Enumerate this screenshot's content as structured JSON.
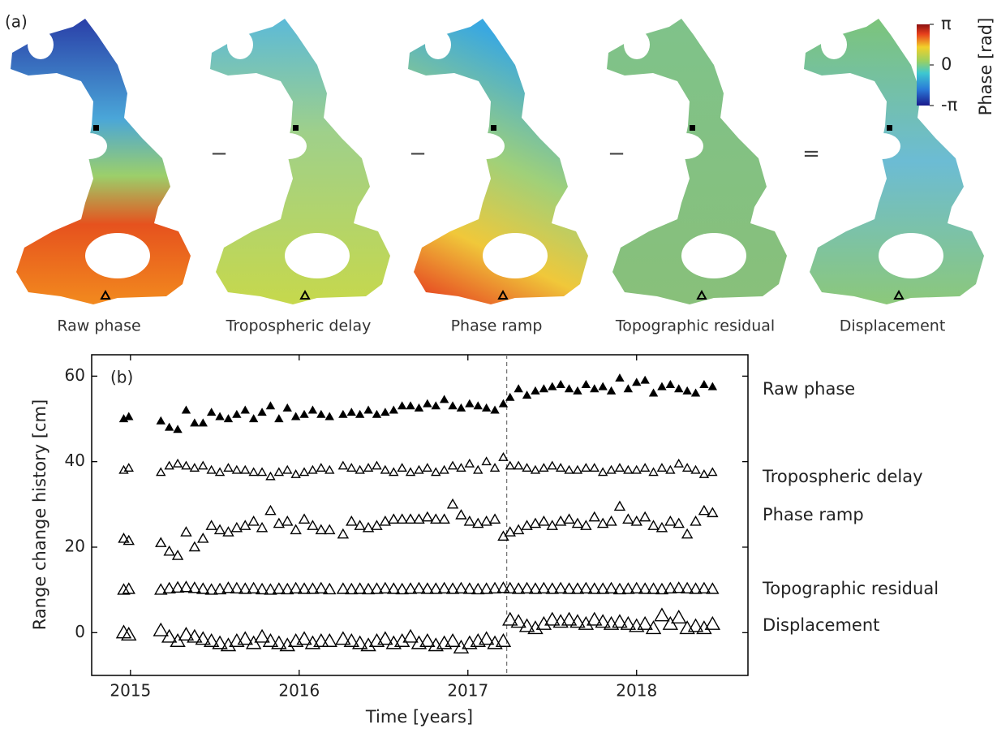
{
  "figure_a": {
    "panel_label": "(a)",
    "maps": [
      {
        "label": "Raw phase"
      },
      {
        "label": "Tropospheric delay"
      },
      {
        "label": "Phase ramp"
      },
      {
        "label": "Topographic residual"
      },
      {
        "label": "Displacement"
      }
    ],
    "operators": [
      "−",
      "−",
      "−",
      "="
    ],
    "colorbar": {
      "label": "Phase [rad]",
      "lim": [
        -3.14159,
        3.14159
      ],
      "ticks": [
        {
          "value": 3.14159,
          "label": "π"
        },
        0,
        {
          "value": -3.14159,
          "label": "-π"
        }
      ]
    }
  },
  "chart_data": {
    "type": "scatter",
    "panel_label": "(b)",
    "xlabel": "Time [years]",
    "ylabel": "Range change history [cm]",
    "xlim": [
      2014.77,
      2018.66
    ],
    "xticks": [
      2015,
      2016,
      2017,
      2018
    ],
    "ylim": [
      -10,
      65
    ],
    "yticks": [
      0,
      20,
      40,
      60
    ],
    "vline": 2017.23,
    "x": [
      2014.96,
      2014.99,
      2015.18,
      2015.23,
      2015.28,
      2015.33,
      2015.38,
      2015.43,
      2015.48,
      2015.53,
      2015.58,
      2015.63,
      2015.68,
      2015.73,
      2015.78,
      2015.83,
      2015.88,
      2015.93,
      2015.98,
      2016.03,
      2016.08,
      2016.13,
      2016.18,
      2016.26,
      2016.31,
      2016.36,
      2016.41,
      2016.46,
      2016.51,
      2016.56,
      2016.61,
      2016.66,
      2016.71,
      2016.76,
      2016.81,
      2016.86,
      2016.91,
      2016.96,
      2017.01,
      2017.06,
      2017.11,
      2017.16,
      2017.21,
      2017.25,
      2017.3,
      2017.35,
      2017.4,
      2017.45,
      2017.5,
      2017.55,
      2017.6,
      2017.65,
      2017.7,
      2017.75,
      2017.8,
      2017.85,
      2017.9,
      2017.95,
      2018.0,
      2018.05,
      2018.1,
      2018.15,
      2018.2,
      2018.25,
      2018.3,
      2018.35,
      2018.4,
      2018.45
    ],
    "series": [
      {
        "name": "Raw phase",
        "color": "#000000",
        "marker": "filled",
        "values": [
          50,
          50.5,
          49.5,
          48,
          47.5,
          52,
          49,
          49,
          51.5,
          50.5,
          50,
          51,
          52,
          50,
          51.5,
          53,
          50,
          52.5,
          50.5,
          51,
          52,
          51,
          50.5,
          51,
          51.5,
          51,
          52,
          51,
          51.5,
          52,
          53,
          53,
          52.5,
          53.5,
          53,
          54.5,
          53,
          52.5,
          53.5,
          53,
          52.5,
          52,
          53.5,
          55,
          57,
          55.5,
          56.5,
          57,
          57.5,
          58,
          57,
          56.5,
          58,
          57,
          57.5,
          56.5,
          59.5,
          57,
          58.5,
          59,
          56,
          57.5,
          58,
          57,
          56.5,
          56,
          58,
          57.5
        ]
      },
      {
        "name": "Tropospheric delay",
        "color": "#000000",
        "marker": "open",
        "values": [
          38,
          38.5,
          37.5,
          39,
          39.5,
          39,
          38.5,
          39,
          38,
          37.5,
          38.5,
          38,
          38,
          37.5,
          37.5,
          36.5,
          37.5,
          38,
          37,
          37.5,
          38,
          38.5,
          38,
          39,
          38.5,
          38,
          38.5,
          39,
          38,
          37.5,
          38.5,
          37.5,
          38,
          38.5,
          37.5,
          38,
          39,
          38.5,
          39.5,
          38,
          40,
          38.5,
          41,
          39,
          39,
          38.5,
          38,
          38.5,
          39,
          38.5,
          38,
          38,
          38.5,
          38.5,
          37.5,
          38,
          38.5,
          38,
          38,
          38.5,
          37.5,
          38.5,
          38,
          39.5,
          38.5,
          38,
          37,
          37.5
        ]
      },
      {
        "name": "Phase ramp",
        "color": "#000000",
        "marker": "open",
        "values": [
          22,
          21.5,
          21,
          19,
          18,
          23.5,
          20,
          22,
          25,
          24,
          23.5,
          24.5,
          25,
          26,
          24.5,
          28.5,
          25.5,
          26,
          24,
          26.5,
          25,
          24,
          24,
          23,
          26,
          25,
          24.5,
          25,
          26,
          26.5,
          26.5,
          26.5,
          26.5,
          27,
          26.5,
          26.5,
          30,
          27.5,
          26,
          25.5,
          26,
          26.5,
          22.5,
          23.5,
          24,
          25,
          25.5,
          26,
          25,
          26,
          26.5,
          25.5,
          25,
          27,
          25.5,
          26,
          29.5,
          26.5,
          26,
          27,
          25,
          24.5,
          26,
          25.5,
          23,
          26,
          28.5,
          28
        ]
      },
      {
        "name": "Topographic residual",
        "color": "#000000",
        "marker": "open",
        "values": [
          10,
          10.2,
          10,
          10.3,
          10.5,
          10.6,
          10.4,
          10.2,
          10,
          10.1,
          10.4,
          10.3,
          10.2,
          10.3,
          10.1,
          10,
          10.2,
          10.1,
          10.3,
          10.2,
          10.2,
          10.3,
          10.1,
          10.2,
          10.1,
          10.2,
          10.1,
          10.2,
          10.3,
          10.2,
          10.1,
          10.2,
          10.3,
          10.2,
          10.2,
          10.3,
          10.2,
          10.3,
          10.2,
          10.1,
          10.2,
          10.3,
          10.4,
          10.3,
          10.2,
          10.3,
          10.2,
          10.3,
          10.2,
          10.3,
          10.2,
          10.2,
          10.3,
          10.2,
          10.2,
          10.3,
          10.1,
          10.2,
          10.3,
          10.2,
          10.2,
          10.1,
          10.3,
          10.4,
          10.3,
          10.2,
          10.3,
          10.2
        ]
      },
      {
        "name": "Displacement",
        "color": "#000000",
        "marker": "open",
        "values": [
          0,
          -0.5,
          0.5,
          -1,
          -2,
          -0.5,
          -1,
          -1.5,
          -2,
          -2.5,
          -3,
          -2,
          -1.5,
          -2.5,
          -1,
          -2,
          -2.5,
          -3,
          -2,
          -1.5,
          -2.5,
          -2,
          -2,
          -1.5,
          -2,
          -2.5,
          -3,
          -2,
          -1.5,
          -2.5,
          -2,
          -1,
          -2.5,
          -2,
          -3,
          -2.5,
          -2,
          -3.5,
          -2.5,
          -2,
          -1.5,
          -2.5,
          -2,
          3,
          2.5,
          1.5,
          1,
          2,
          3,
          2.5,
          3,
          2.5,
          2,
          3,
          2.5,
          2,
          2.5,
          2,
          1.5,
          2,
          1,
          4,
          2,
          3.5,
          1,
          1.5,
          1,
          2
        ]
      }
    ]
  }
}
